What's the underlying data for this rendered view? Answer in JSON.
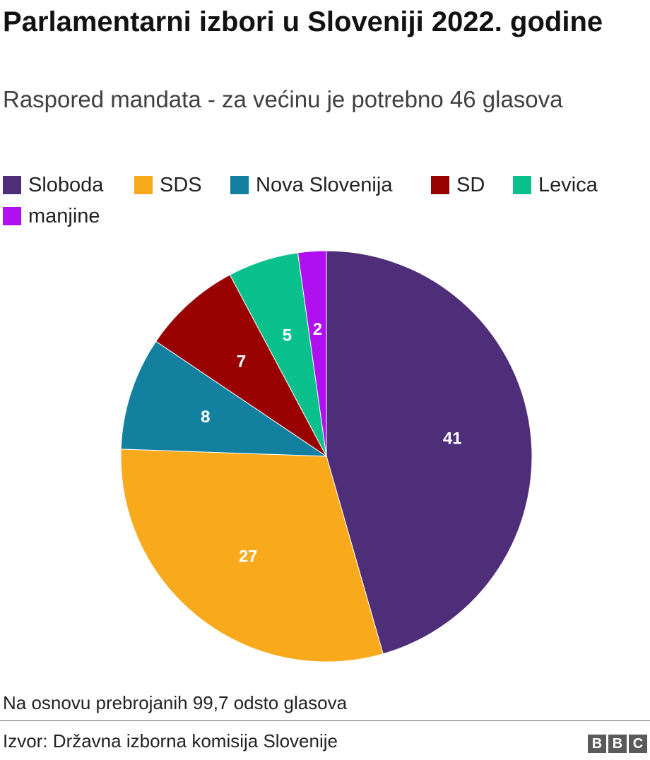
{
  "chart_data": {
    "type": "pie",
    "title": "Parlamentarni izbori u Sloveniji 2022. godine",
    "subtitle": "Raspored mandata - za većinu je potrebno 46 glasova",
    "legend_position": "top",
    "slices": [
      {
        "label": "Sloboda",
        "value": 41,
        "color": "#4f2e79"
      },
      {
        "label": "SDS",
        "value": 27,
        "color": "#f8aa1c"
      },
      {
        "label": "Nova Slovenija",
        "value": 8,
        "color": "#1380a0"
      },
      {
        "label": "SD",
        "value": 7,
        "color": "#990000"
      },
      {
        "label": "Levica",
        "value": 5,
        "color": "#0ac18e"
      },
      {
        "label": "manjine",
        "value": 2,
        "color": "#b00ff0"
      }
    ]
  },
  "footer": {
    "note": "Na osnovu prebrojanih 99,7 odsto glasova",
    "source": "Izvor: Državna izborna komisija Slovenije",
    "logo_letters": [
      "B",
      "B",
      "C"
    ]
  }
}
